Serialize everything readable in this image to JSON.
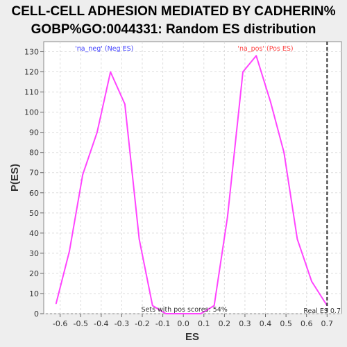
{
  "chart_data": {
    "type": "line",
    "title_line1": "CELL-CELL ADHESION MEDIATED BY CADHERIN%",
    "title_line2": "GOBP%GO:0044331: Random ES distribution",
    "xlabel": "ES",
    "ylabel": "P(ES)",
    "xlim": [
      -0.68,
      0.77
    ],
    "ylim": [
      0,
      135
    ],
    "x_ticks": [
      "-0.6",
      "-0.5",
      "-0.4",
      "-0.3",
      "-0.2",
      "-0.1",
      "0.0",
      "0.1",
      "0.2",
      "0.3",
      "0.4",
      "0.5",
      "0.6",
      "0.7"
    ],
    "y_ticks": [
      "0",
      "10",
      "20",
      "30",
      "40",
      "50",
      "60",
      "70",
      "80",
      "90",
      "100",
      "110",
      "120",
      "130"
    ],
    "grid": true,
    "series": [
      {
        "color": "#ff44ff",
        "x": [
          -0.62,
          -0.555,
          -0.49,
          -0.42,
          -0.355,
          -0.285,
          -0.215,
          -0.15,
          -0.085,
          0.085,
          0.15,
          0.215,
          0.29,
          0.355,
          0.425,
          0.49,
          0.555,
          0.625,
          0.7
        ],
        "y": [
          5,
          31,
          69,
          90,
          120,
          104,
          37,
          4,
          0,
          0,
          4,
          48,
          120,
          128,
          105,
          80,
          37,
          16,
          4
        ]
      }
    ],
    "real_es": 0.7,
    "annotations": {
      "neg_label": "'na_neg' (Neg ES)",
      "pos_label": "'na_pos' (Pos ES)",
      "sets_label": "Sets with pos scores: 54%",
      "real_es_label": "Real ES 0.7"
    },
    "colors": {
      "neg_label": "#4444ff",
      "pos_label": "#ff4444",
      "line": "#ff44ff",
      "background": "#eeeeee",
      "plot_background": "#ffffff",
      "grid": "#dddddd"
    }
  }
}
